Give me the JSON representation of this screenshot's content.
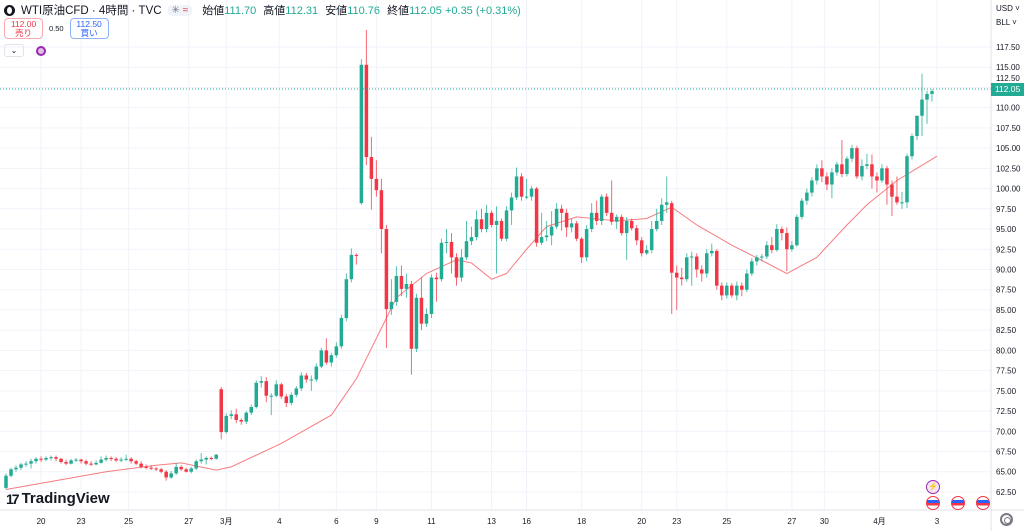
{
  "header": {
    "title": "WTI原油CFD · 4時間 · TVC",
    "chip_icons": [
      "snowflake-icon",
      "wave-icon"
    ],
    "open_label": "始値",
    "open": "111.70",
    "high_label": "高値",
    "high": "112.31",
    "low_label": "安値",
    "low": "110.76",
    "close_label": "終値",
    "close": "112.05",
    "change": "+0.35 (+0.31%)"
  },
  "trade": {
    "sell_price": "112.00",
    "sell_label": "売り",
    "spread": "0.50",
    "buy_price": "112.50",
    "buy_label": "買い"
  },
  "axis": {
    "currency": "USD",
    "unit": "BLL",
    "last_price": "112.05"
  },
  "brand": "TradingView",
  "colors": {
    "up": "#22ab94",
    "down": "#f23645",
    "ma": "#f77c80",
    "grid": "#f0f3fa"
  },
  "chart_data": {
    "type": "candlestick",
    "title": "WTI原油CFD · 4時間 · TVC",
    "ylim": [
      61,
      120
    ],
    "yticks": [
      62.5,
      65,
      67.5,
      70,
      72.5,
      75,
      77.5,
      80,
      82.5,
      85,
      87.5,
      90,
      92.5,
      95,
      97.5,
      100,
      102.5,
      105,
      107.5,
      110,
      112.5,
      115,
      117.5
    ],
    "ytick_labels": [
      "62.50",
      "65.00",
      "67.50",
      "70.00",
      "72.50",
      "75.00",
      "77.50",
      "80.00",
      "82.50",
      "85.00",
      "87.50",
      "90.00",
      "92.50",
      "95.00",
      "97.50",
      "100.00",
      "102.50",
      "105.00",
      "107.50",
      "110.00",
      "112.50",
      "115.00",
      "117.50"
    ],
    "xticks": [
      {
        "i": 7,
        "label": "20"
      },
      {
        "i": 15,
        "label": "23"
      },
      {
        "i": 24.5,
        "label": "25"
      },
      {
        "i": 36.5,
        "label": "27"
      },
      {
        "i": 44,
        "label": "3月"
      },
      {
        "i": 54.6,
        "label": "4"
      },
      {
        "i": 66,
        "label": "6"
      },
      {
        "i": 74,
        "label": "9"
      },
      {
        "i": 85,
        "label": "11"
      },
      {
        "i": 97,
        "label": "13"
      },
      {
        "i": 104,
        "label": "16"
      },
      {
        "i": 115,
        "label": "18"
      },
      {
        "i": 127,
        "label": "20"
      },
      {
        "i": 134,
        "label": "23"
      },
      {
        "i": 144,
        "label": "25"
      },
      {
        "i": 157,
        "label": "27"
      },
      {
        "i": 163.5,
        "label": "30"
      },
      {
        "i": 174.5,
        "label": "4月"
      },
      {
        "i": 186,
        "label": "3"
      }
    ],
    "ohlc": [
      [
        63.0,
        64.8,
        62.8,
        64.5
      ],
      [
        64.5,
        65.5,
        64.3,
        65.3
      ],
      [
        65.3,
        65.8,
        65.0,
        65.5
      ],
      [
        65.5,
        66.1,
        65.2,
        65.9
      ],
      [
        65.9,
        66.3,
        65.6,
        66.0
      ],
      [
        66.0,
        66.6,
        65.4,
        66.3
      ],
      [
        66.3,
        66.8,
        66.0,
        66.6
      ],
      [
        66.6,
        66.9,
        66.2,
        66.5
      ],
      [
        66.5,
        66.9,
        66.3,
        66.7
      ],
      [
        66.7,
        67.0,
        66.4,
        66.8
      ],
      [
        66.8,
        67.0,
        66.3,
        66.6
      ],
      [
        66.6,
        66.7,
        66.0,
        66.2
      ],
      [
        66.2,
        66.5,
        65.8,
        66.0
      ],
      [
        66.0,
        66.6,
        65.9,
        66.4
      ],
      [
        66.4,
        66.7,
        66.2,
        66.5
      ],
      [
        66.5,
        66.6,
        66.0,
        66.3
      ],
      [
        66.3,
        66.5,
        65.8,
        66.0
      ],
      [
        66.0,
        66.3,
        65.7,
        65.9
      ],
      [
        65.9,
        66.4,
        65.8,
        66.1
      ],
      [
        66.1,
        66.9,
        66.0,
        66.5
      ],
      [
        66.5,
        67.0,
        66.3,
        66.7
      ],
      [
        66.7,
        66.9,
        66.3,
        66.6
      ],
      [
        66.6,
        66.8,
        66.2,
        66.4
      ],
      [
        66.4,
        66.8,
        66.2,
        66.5
      ],
      [
        66.5,
        67.1,
        66.3,
        66.6
      ],
      [
        66.6,
        66.8,
        66.0,
        66.3
      ],
      [
        66.3,
        66.5,
        65.8,
        66.0
      ],
      [
        66.0,
        66.3,
        65.4,
        65.6
      ],
      [
        65.6,
        65.9,
        65.3,
        65.5
      ],
      [
        65.5,
        65.8,
        65.2,
        65.4
      ],
      [
        65.4,
        65.6,
        65.1,
        65.3
      ],
      [
        65.3,
        65.5,
        64.8,
        65.0
      ],
      [
        65.0,
        65.2,
        63.9,
        64.3
      ],
      [
        64.3,
        65.1,
        64.1,
        64.8
      ],
      [
        64.8,
        66.1,
        64.6,
        65.6
      ],
      [
        65.6,
        65.8,
        65.1,
        65.3
      ],
      [
        65.3,
        65.5,
        64.9,
        65.0
      ],
      [
        65.0,
        65.6,
        64.8,
        65.4
      ],
      [
        65.4,
        66.5,
        65.2,
        66.3
      ],
      [
        66.3,
        67.3,
        66.0,
        66.5
      ],
      [
        66.5,
        66.9,
        65.9,
        66.7
      ],
      [
        66.7,
        66.9,
        66.4,
        66.6
      ],
      [
        66.6,
        67.2,
        66.5,
        67.1
      ],
      [
        75.2,
        75.5,
        69.0,
        69.9
      ],
      [
        69.9,
        72.2,
        69.7,
        71.9
      ],
      [
        71.9,
        72.6,
        71.5,
        72.1
      ],
      [
        72.1,
        72.8,
        71.0,
        71.4
      ],
      [
        71.4,
        71.6,
        70.8,
        71.2
      ],
      [
        71.2,
        72.5,
        70.9,
        72.3
      ],
      [
        72.3,
        73.3,
        72.0,
        73.0
      ],
      [
        73.0,
        76.3,
        72.8,
        76.0
      ],
      [
        76.0,
        76.8,
        75.4,
        76.2
      ],
      [
        76.2,
        76.7,
        73.6,
        74.4
      ],
      [
        74.4,
        74.7,
        72.0,
        74.4
      ],
      [
        74.4,
        76.3,
        74.2,
        75.8
      ],
      [
        75.8,
        76.0,
        74.0,
        74.3
      ],
      [
        74.3,
        74.6,
        73.0,
        73.5
      ],
      [
        73.5,
        74.8,
        73.2,
        74.5
      ],
      [
        74.5,
        75.6,
        74.2,
        75.3
      ],
      [
        75.3,
        77.3,
        75.0,
        76.9
      ],
      [
        76.9,
        77.2,
        76.0,
        76.4
      ],
      [
        76.4,
        76.9,
        75.0,
        76.4
      ],
      [
        76.4,
        78.4,
        76.1,
        78.0
      ],
      [
        78.0,
        80.3,
        77.8,
        80.0
      ],
      [
        80.0,
        81.5,
        78.2,
        78.5
      ],
      [
        78.5,
        79.7,
        78.0,
        79.4
      ],
      [
        79.4,
        81.0,
        79.1,
        80.5
      ],
      [
        80.5,
        84.4,
        80.2,
        84.0
      ],
      [
        84.0,
        89.5,
        83.6,
        88.8
      ],
      [
        88.8,
        92.6,
        88.4,
        91.8
      ],
      [
        91.8,
        92.0,
        90.6,
        91.7
      ],
      [
        98.2,
        116.0,
        98.0,
        115.3
      ],
      [
        115.3,
        119.6,
        102.9,
        103.9
      ],
      [
        103.9,
        106.4,
        97.4,
        101.2
      ],
      [
        101.2,
        103.5,
        99.0,
        99.8
      ],
      [
        99.8,
        101.2,
        92.0,
        95.0
      ],
      [
        95.0,
        95.5,
        80.3,
        85.1
      ],
      [
        85.1,
        88.8,
        84.4,
        86.0
      ],
      [
        86.0,
        90.4,
        85.5,
        89.2
      ],
      [
        89.2,
        90.5,
        86.7,
        87.6
      ],
      [
        87.6,
        89.5,
        86.5,
        88.2
      ],
      [
        88.2,
        88.6,
        77.0,
        80.2
      ],
      [
        80.2,
        87.0,
        79.8,
        86.5
      ],
      [
        86.5,
        89.0,
        82.5,
        83.3
      ],
      [
        83.3,
        85.2,
        82.9,
        84.5
      ],
      [
        84.5,
        89.4,
        84.0,
        89.0
      ],
      [
        89.0,
        89.6,
        86.0,
        88.8
      ],
      [
        88.8,
        93.8,
        88.5,
        93.3
      ],
      [
        93.3,
        95.0,
        92.0,
        93.4
      ],
      [
        93.4,
        94.5,
        89.5,
        91.5
      ],
      [
        91.5,
        92.0,
        88.0,
        89.0
      ],
      [
        89.0,
        92.5,
        88.5,
        91.5
      ],
      [
        91.5,
        96.0,
        91.2,
        93.5
      ],
      [
        93.5,
        95.3,
        93.0,
        94.0
      ],
      [
        94.0,
        97.3,
        93.6,
        96.2
      ],
      [
        96.2,
        97.5,
        94.6,
        95.0
      ],
      [
        95.0,
        98.0,
        94.6,
        97.0
      ],
      [
        97.0,
        97.3,
        95.2,
        95.5
      ],
      [
        95.5,
        97.8,
        89.5,
        96.0
      ],
      [
        96.0,
        96.3,
        93.5,
        93.8
      ],
      [
        93.8,
        97.8,
        93.5,
        97.3
      ],
      [
        97.3,
        99.5,
        95.5,
        98.9
      ],
      [
        98.9,
        102.6,
        98.6,
        101.5
      ],
      [
        101.5,
        101.9,
        98.5,
        99.0
      ],
      [
        99.0,
        101.2,
        98.7,
        99.0
      ],
      [
        99.0,
        100.3,
        98.5,
        100.0
      ],
      [
        100.0,
        100.2,
        92.8,
        93.3
      ],
      [
        93.3,
        97.0,
        93.0,
        94.0
      ],
      [
        94.0,
        96.0,
        93.5,
        94.2
      ],
      [
        94.2,
        97.2,
        93.0,
        95.3
      ],
      [
        95.3,
        98.2,
        95.0,
        97.5
      ],
      [
        97.5,
        98.0,
        94.8,
        97.0
      ],
      [
        97.0,
        97.5,
        94.0,
        95.2
      ],
      [
        95.2,
        96.3,
        94.6,
        95.7
      ],
      [
        95.7,
        96.0,
        93.5,
        93.8
      ],
      [
        93.8,
        94.0,
        90.8,
        91.5
      ],
      [
        91.5,
        95.5,
        91.0,
        95.0
      ],
      [
        95.0,
        98.2,
        94.6,
        97.0
      ],
      [
        97.0,
        98.5,
        95.5,
        96.0
      ],
      [
        96.0,
        99.3,
        95.5,
        99.0
      ],
      [
        99.0,
        99.4,
        96.6,
        97.0
      ],
      [
        97.0,
        101.0,
        95.5,
        95.9
      ],
      [
        95.9,
        96.8,
        95.0,
        96.5
      ],
      [
        96.5,
        96.8,
        94.2,
        94.5
      ],
      [
        94.5,
        96.5,
        91.2,
        96.0
      ],
      [
        96.0,
        96.3,
        94.8,
        95.1
      ],
      [
        95.1,
        95.5,
        93.0,
        93.6
      ],
      [
        93.6,
        94.0,
        91.6,
        92.0
      ],
      [
        92.0,
        93.0,
        91.8,
        92.4
      ],
      [
        92.4,
        96.0,
        92.0,
        95.0
      ],
      [
        95.0,
        97.5,
        94.7,
        96.0
      ],
      [
        96.0,
        98.8,
        95.5,
        98.0
      ],
      [
        98.0,
        101.5,
        97.0,
        98.3
      ],
      [
        98.2,
        98.5,
        84.5,
        89.6
      ],
      [
        89.6,
        90.5,
        85.0,
        89.0
      ],
      [
        89.0,
        90.2,
        88.0,
        88.8
      ],
      [
        88.8,
        92.0,
        88.5,
        91.5
      ],
      [
        91.5,
        92.2,
        88.0,
        91.6
      ],
      [
        91.6,
        92.0,
        89.0,
        90.0
      ],
      [
        90.0,
        90.5,
        88.5,
        89.5
      ],
      [
        89.5,
        92.5,
        89.0,
        92.0
      ],
      [
        92.0,
        93.2,
        91.6,
        92.3
      ],
      [
        92.3,
        92.5,
        87.5,
        88.0
      ],
      [
        88.0,
        88.4,
        86.2,
        86.8
      ],
      [
        86.8,
        88.4,
        86.4,
        88.0
      ],
      [
        88.0,
        88.3,
        86.5,
        86.8
      ],
      [
        86.8,
        88.5,
        86.2,
        88.0
      ],
      [
        88.0,
        88.4,
        86.7,
        87.5
      ],
      [
        87.5,
        90.0,
        87.2,
        89.5
      ],
      [
        89.5,
        91.4,
        89.2,
        91.0
      ],
      [
        91.0,
        91.8,
        90.5,
        91.5
      ],
      [
        91.5,
        91.9,
        91.0,
        91.6
      ],
      [
        91.6,
        93.5,
        91.3,
        93.0
      ],
      [
        93.0,
        94.0,
        92.0,
        92.4
      ],
      [
        92.4,
        95.6,
        92.2,
        95.0
      ],
      [
        95.0,
        95.3,
        93.6,
        94.5
      ],
      [
        94.5,
        95.2,
        89.8,
        92.5
      ],
      [
        92.5,
        93.5,
        92.2,
        93.0
      ],
      [
        93.0,
        96.8,
        92.8,
        96.5
      ],
      [
        96.5,
        98.8,
        96.2,
        98.5
      ],
      [
        98.5,
        100.0,
        98.0,
        99.5
      ],
      [
        99.5,
        101.4,
        99.0,
        101.0
      ],
      [
        101.0,
        103.0,
        100.5,
        102.5
      ],
      [
        102.5,
        103.5,
        100.8,
        101.5
      ],
      [
        101.5,
        102.0,
        99.8,
        100.5
      ],
      [
        100.5,
        102.5,
        98.8,
        102.0
      ],
      [
        102.0,
        103.3,
        101.6,
        103.0
      ],
      [
        103.0,
        106.0,
        101.4,
        101.8
      ],
      [
        101.8,
        104.0,
        101.5,
        103.7
      ],
      [
        103.7,
        105.4,
        103.3,
        105.0
      ],
      [
        105.0,
        105.3,
        101.2,
        101.5
      ],
      [
        101.5,
        103.6,
        101.0,
        102.8
      ],
      [
        102.8,
        104.3,
        102.4,
        103.0
      ],
      [
        103.0,
        104.2,
        100.0,
        101.5
      ],
      [
        101.5,
        102.0,
        99.5,
        101.0
      ],
      [
        101.0,
        103.0,
        100.7,
        102.5
      ],
      [
        102.5,
        102.8,
        98.0,
        100.5
      ],
      [
        100.5,
        101.0,
        96.6,
        99.0
      ],
      [
        99.0,
        101.5,
        98.0,
        98.3
      ],
      [
        98.3,
        99.6,
        97.5,
        98.3
      ],
      [
        98.3,
        104.3,
        97.6,
        104.0
      ],
      [
        104.0,
        106.8,
        103.6,
        106.5
      ],
      [
        106.5,
        109.0,
        106.0,
        109.0
      ],
      [
        109.0,
        114.2,
        106.5,
        111.0
      ],
      [
        111.0,
        112.1,
        108.0,
        111.7
      ],
      [
        111.7,
        112.31,
        110.76,
        112.05
      ]
    ],
    "moving_average": [
      [
        0,
        62.8
      ],
      [
        20,
        65.0
      ],
      [
        30,
        65.8
      ],
      [
        35,
        66.1
      ],
      [
        42,
        65.2
      ],
      [
        45,
        65.6
      ],
      [
        55,
        68.5
      ],
      [
        65,
        72.0
      ],
      [
        70,
        76.5
      ],
      [
        72,
        79.0
      ],
      [
        78,
        86.5
      ],
      [
        84,
        89.5
      ],
      [
        90,
        91.2
      ],
      [
        93,
        90.8
      ],
      [
        97,
        88.8
      ],
      [
        100,
        89.5
      ],
      [
        104,
        92.5
      ],
      [
        108,
        95.3
      ],
      [
        114,
        96.5
      ],
      [
        122,
        96.0
      ],
      [
        128,
        96.3
      ],
      [
        133,
        97.7
      ],
      [
        138,
        95.5
      ],
      [
        145,
        93.0
      ],
      [
        152,
        90.8
      ],
      [
        156,
        89.5
      ],
      [
        162,
        91.5
      ],
      [
        168,
        95.5
      ],
      [
        172,
        98.0
      ],
      [
        178,
        101.0
      ],
      [
        182,
        102.5
      ],
      [
        186,
        104.0
      ]
    ]
  }
}
